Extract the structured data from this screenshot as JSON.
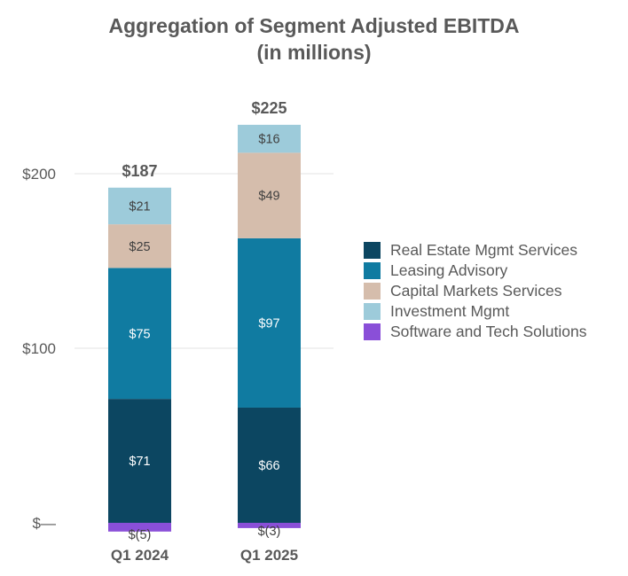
{
  "chart_data": {
    "type": "bar",
    "stacked": true,
    "title": "Aggregation of Segment Adjusted EBITDA",
    "subtitle": "(in millions)",
    "categories": [
      "Q1 2024",
      "Q1 2025"
    ],
    "totals": [
      "$187",
      "$225"
    ],
    "ylim": [
      -5,
      225
    ],
    "yticks": [
      {
        "value": 0,
        "label": "$—"
      },
      {
        "value": 100,
        "label": "$100"
      },
      {
        "value": 200,
        "label": "$200"
      }
    ],
    "grid": true,
    "legend_position": "right",
    "series": [
      {
        "name": "Real Estate Mgmt Services",
        "color": "#0c4661",
        "values": [
          71,
          66
        ],
        "labels": [
          "$71",
          "$66"
        ]
      },
      {
        "name": "Leasing Advisory",
        "color": "#107ba1",
        "values": [
          75,
          97
        ],
        "labels": [
          "$75",
          "$97"
        ]
      },
      {
        "name": "Capital Markets Services",
        "color": "#d5bdac",
        "values": [
          25,
          49
        ],
        "labels": [
          "$25",
          "$49"
        ]
      },
      {
        "name": "Investment Mgmt",
        "color": "#9dcbda",
        "values": [
          21,
          16
        ],
        "labels": [
          "$21",
          "$16"
        ]
      },
      {
        "name": "Software and Tech Solutions",
        "color": "#8a4fd8",
        "values": [
          -5,
          -3
        ],
        "labels": [
          "$(5)",
          "$(3)"
        ]
      }
    ]
  }
}
